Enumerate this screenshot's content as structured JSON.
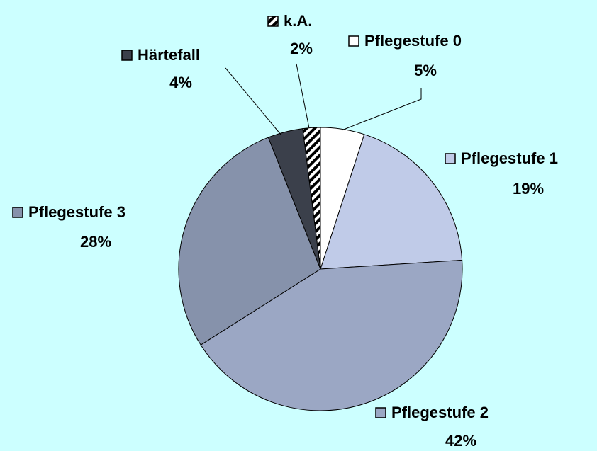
{
  "chart_data": {
    "type": "pie",
    "categories": [
      "Pflegestufe 0",
      "Pflegestufe 1",
      "Pflegestufe 2",
      "Pflegestufe 3",
      "Härtefall",
      "k.A."
    ],
    "values": [
      5,
      19,
      42,
      28,
      4,
      2
    ],
    "value_labels": [
      "5%",
      "19%",
      "42%",
      "28%",
      "4%",
      "2%"
    ],
    "colors": [
      "#ffffff",
      "#c0cbe8",
      "#9ba7c4",
      "#8692ab",
      "#3b404b",
      "url(#hatch)"
    ]
  }
}
